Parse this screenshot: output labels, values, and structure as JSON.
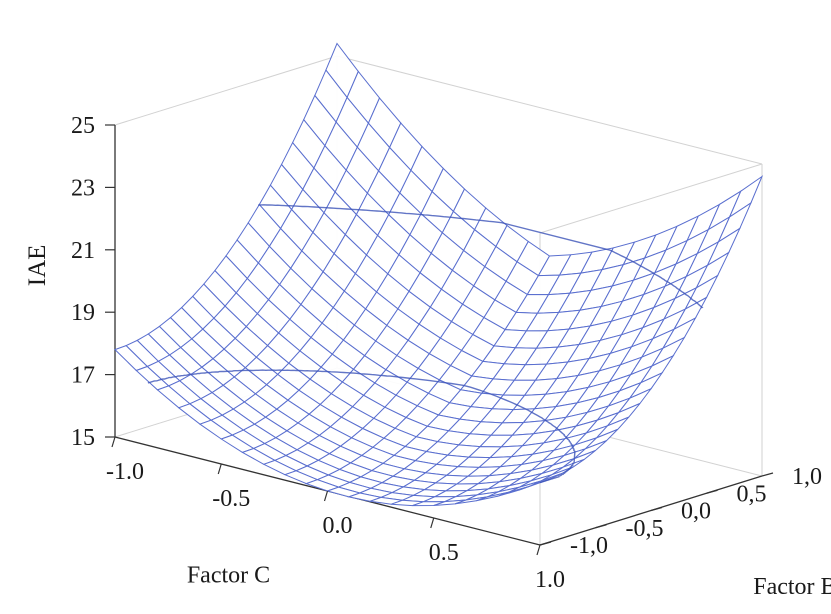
{
  "chart_data": {
    "type": "surface",
    "zlabel": "IAE",
    "xlabel": "Factor C",
    "ylabel": "Factor B",
    "x_ticks": [
      "-1.0",
      "-0.5",
      "0.0",
      "0.5",
      "1.0"
    ],
    "y_ticks": [
      "-1,0",
      "-0,5",
      "0,0",
      "0,5",
      "1,0"
    ],
    "z_ticks": [
      "15",
      "17",
      "19",
      "21",
      "23",
      "25"
    ],
    "xlim": [
      -1,
      1
    ],
    "ylim": [
      -1,
      1
    ],
    "zlim": [
      15,
      25
    ],
    "grid_points": 21,
    "surface_corners": [
      {
        "x": -1.0,
        "y": -1.0,
        "z": 17.8
      },
      {
        "x": -1.0,
        "y": 1.0,
        "z": 25.0
      },
      {
        "x": 1.0,
        "y": 1.0,
        "z": 25.0
      },
      {
        "x": 1.0,
        "y": -1.0,
        "z": 17.0
      }
    ],
    "minimum": {
      "x": 0.0,
      "y": -1.0,
      "z": 15.0
    },
    "contour_levels": [
      17,
      21
    ],
    "colors": {
      "mesh": "#5a6fcf",
      "mesh_dark": "#3b52b8",
      "box": "#d2d2d2",
      "axis": "#333333"
    }
  }
}
